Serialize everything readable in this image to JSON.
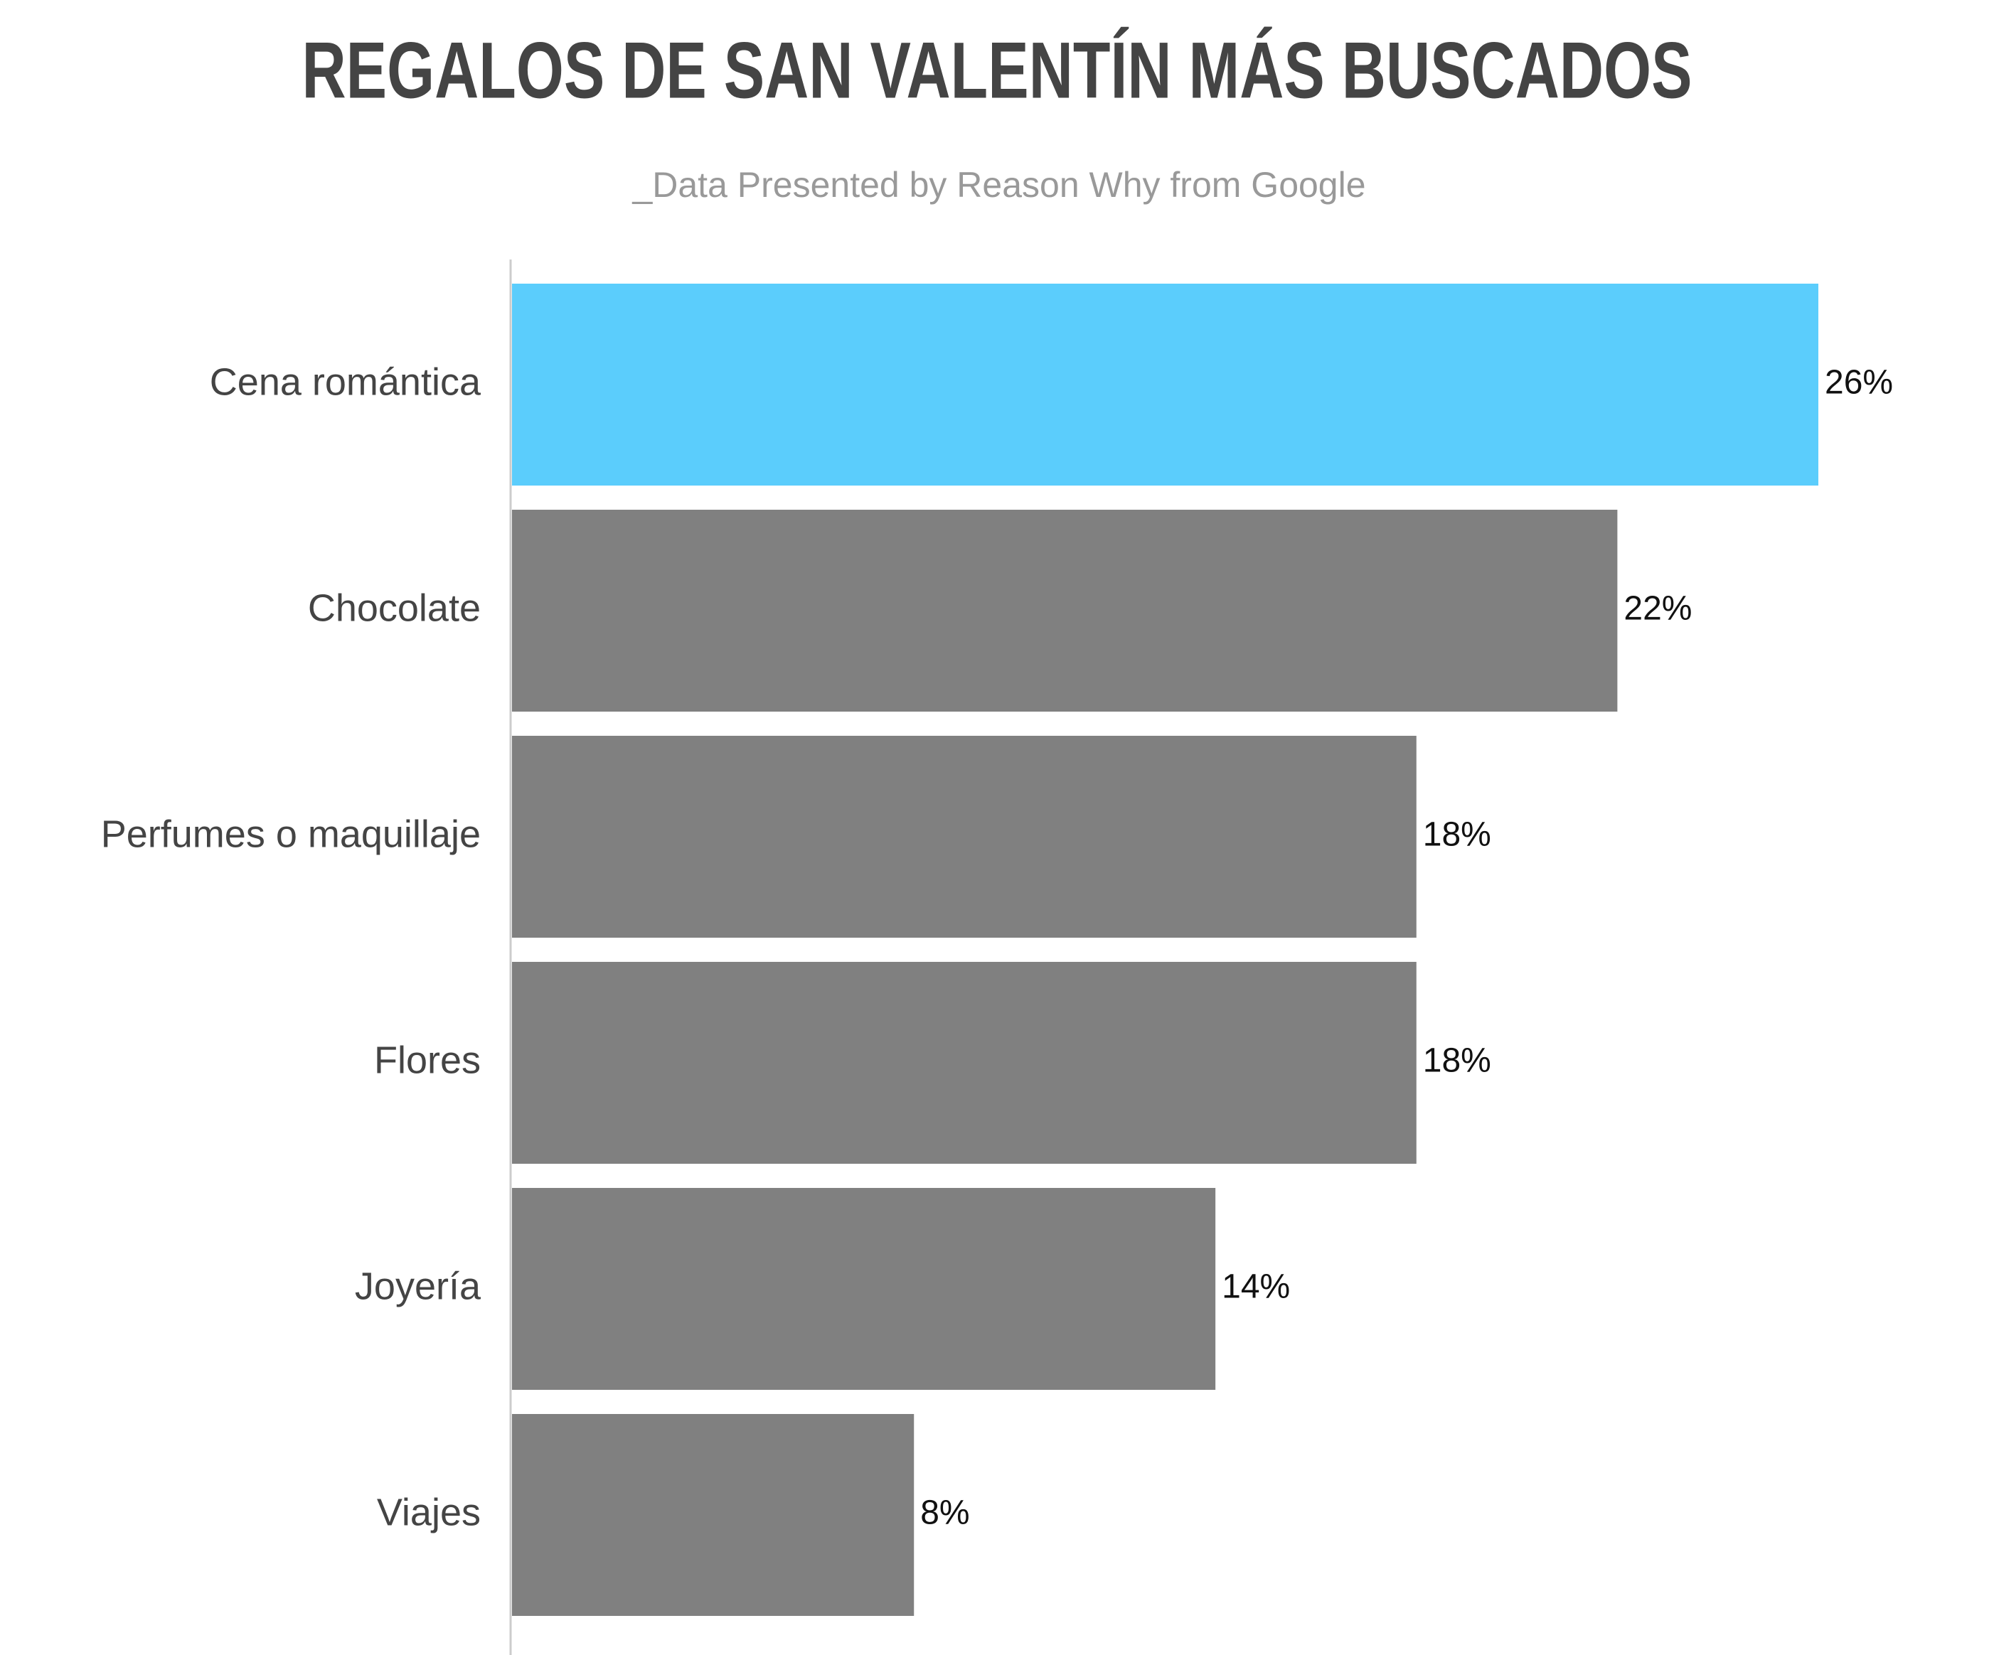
{
  "chart_data": {
    "type": "hbar",
    "title": "REGALOS DE SAN VALENTÍN MÁS BUSCADOS",
    "subtitle": "_Data Presented by Reason Why from Google",
    "categories": [
      "Cena romántica",
      "Chocolate",
      "Perfumes o maquillaje",
      "Flores",
      "Joyería",
      "Viajes"
    ],
    "values": [
      26,
      22,
      18,
      18,
      14,
      8
    ],
    "value_labels": [
      "26%",
      "22%",
      "18%",
      "18%",
      "14%",
      "8%"
    ],
    "colors": [
      "#5bcdfc",
      "#808080",
      "#808080",
      "#808080",
      "#808080",
      "#808080"
    ]
  }
}
